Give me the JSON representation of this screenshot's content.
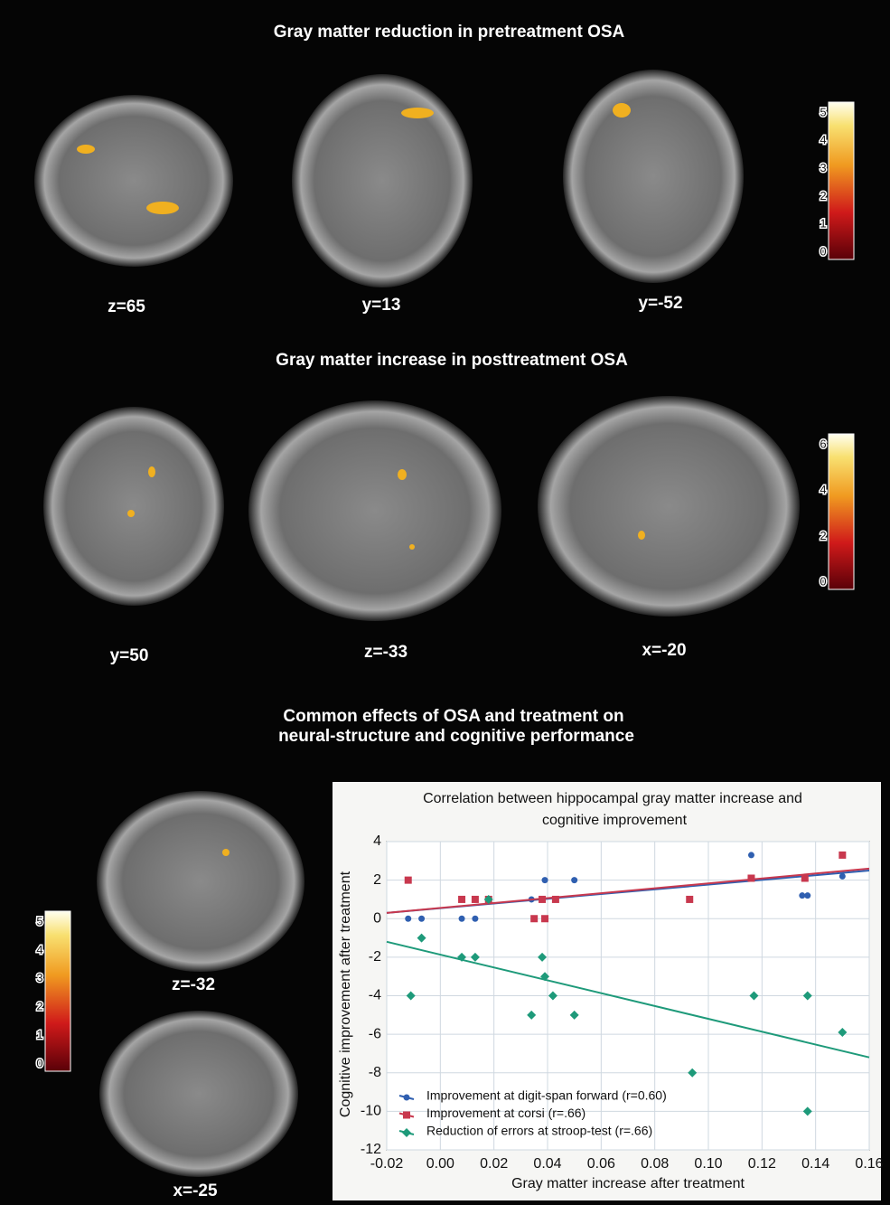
{
  "sections": [
    {
      "title": "Gray matter reduction in pretreatment OSA",
      "slices": [
        "z=65",
        "y=13",
        "y=-52"
      ]
    },
    {
      "title": "Gray matter increase in posttreatment OSA",
      "slices": [
        "y=50",
        "z=-33",
        "x=-20"
      ]
    },
    {
      "title": [
        "Common effects of OSA and treatment on",
        "neural-structure and cognitive performance"
      ],
      "slices": [
        "z=-32",
        "x=-25"
      ]
    }
  ],
  "colorbars": [
    {
      "ticks": [
        0,
        1,
        2,
        3,
        4,
        5
      ]
    },
    {
      "ticks": [
        0,
        2,
        4,
        6
      ]
    },
    {
      "ticks": [
        0,
        1,
        2,
        3,
        4,
        5
      ]
    }
  ],
  "chart_data": {
    "type": "scatter",
    "title": [
      "Correlation between hippocampal gray matter increase and",
      "cognitive improvement"
    ],
    "x_label": "Gray matter increase after treatment",
    "y_label": "Cognitive improvement after treatment",
    "xlim": [
      -0.02,
      0.16
    ],
    "xticks": [
      -0.02,
      {
        "value": 0,
        "label": "0.00"
      },
      0.02,
      0.04,
      0.06,
      0.08,
      {
        "value": 0.1,
        "label": "0.10"
      },
      0.12,
      0.14,
      0.16
    ],
    "ylim": [
      -12,
      4
    ],
    "yticks": [
      -12,
      -10,
      -8,
      -6,
      -4,
      -2,
      0,
      2,
      4
    ],
    "grid": true,
    "legend": "lower left",
    "series": [
      {
        "name": "Improvement at digit-span forward (r=0.60)",
        "color": "#2f5fb0",
        "marker": "circle",
        "x": [
          -0.012,
          -0.007,
          0.008,
          0.013,
          0.018,
          0.034,
          0.039,
          0.05,
          0.116,
          0.135,
          0.137,
          0.15
        ],
        "y": [
          0,
          0,
          0,
          0,
          1,
          1,
          2,
          2,
          3.3,
          1.2,
          1.2,
          2.2
        ],
        "trend": {
          "x": [
            -0.02,
            0.16
          ],
          "y": [
            0.3,
            2.5
          ]
        }
      },
      {
        "name": "Improvement at corsi (r=.66)",
        "color": "#c8384e",
        "marker": "square",
        "x": [
          -0.012,
          0.008,
          0.013,
          0.018,
          0.035,
          0.038,
          0.039,
          0.043,
          0.093,
          0.116,
          0.136,
          0.15
        ],
        "y": [
          2,
          1,
          1,
          1,
          0,
          1,
          0,
          1,
          1,
          2.1,
          2.1,
          3.3
        ],
        "trend": {
          "x": [
            -0.02,
            0.16
          ],
          "y": [
            0.3,
            2.6
          ]
        }
      },
      {
        "name": "Reduction of errors at stroop-test (r=.66)",
        "color": "#1e9a7a",
        "marker": "diamond",
        "x": [
          -0.011,
          -0.007,
          0.008,
          0.013,
          0.018,
          0.034,
          0.038,
          0.039,
          0.042,
          0.05,
          0.094,
          0.117,
          0.137,
          0.137,
          0.15
        ],
        "y": [
          -4,
          -1,
          -2,
          -2,
          1,
          -5,
          -2,
          -3,
          -4,
          -5,
          -8,
          -4,
          -4,
          -10,
          -5.9
        ],
        "trend": {
          "x": [
            -0.02,
            0.16
          ],
          "y": [
            -1.2,
            -7.2
          ]
        }
      }
    ]
  }
}
